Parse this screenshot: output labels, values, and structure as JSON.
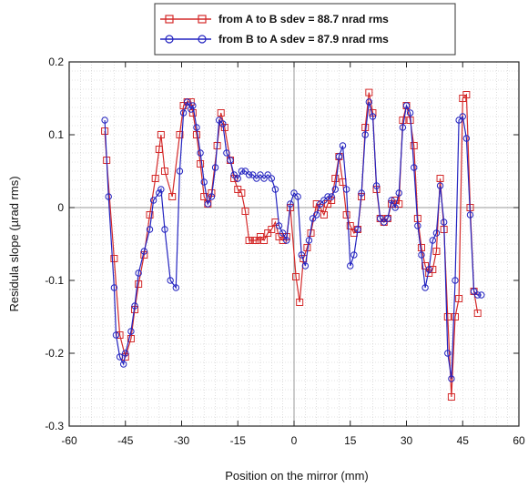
{
  "chart_data": {
    "type": "line",
    "title": "",
    "xlabel": "Position on the mirror (mm)",
    "ylabel": "Residula slope (µrad rms)",
    "xlim": [
      -60,
      60
    ],
    "ylim": [
      -0.3,
      0.2
    ],
    "xticks": [
      -60,
      -45,
      -30,
      -15,
      0,
      15,
      30,
      45,
      60
    ],
    "yticks": [
      -0.3,
      -0.2,
      -0.1,
      0,
      0.1,
      0.2
    ],
    "xtick_labels": [
      "-60",
      "-45",
      "-30",
      "-15",
      "0",
      "15",
      "30",
      "45",
      "60"
    ],
    "ytick_labels": [
      "-0.3",
      "-0.2",
      "-0.1",
      "0",
      "0.1",
      "0.2"
    ],
    "grid": true,
    "legend_position": "top-center",
    "series": [
      {
        "name": "from A to B sdev = 88.7 nrad rms",
        "color": "#d42a2a",
        "marker": "square",
        "x": [
          -50.5,
          -50,
          -48,
          -46.5,
          -45,
          -43.5,
          -42.5,
          -41.5,
          -40,
          -38.5,
          -37,
          -36,
          -35.5,
          -34.5,
          -32.5,
          -30.5,
          -29.5,
          -28.5,
          -27.5,
          -27,
          -26,
          -25,
          -24,
          -23,
          -22,
          -20.5,
          -19.5,
          -18.5,
          -17,
          -16,
          -15,
          -14,
          -13,
          -12,
          -11,
          -10.5,
          -10,
          -9,
          -8,
          -7,
          -6,
          -5,
          -4,
          -3,
          -2,
          -1,
          0.5,
          1.5,
          2.5,
          3.5,
          4.5,
          6,
          7,
          8,
          9,
          10,
          11,
          12,
          13,
          14,
          15,
          16,
          17,
          18,
          19,
          20,
          21,
          22,
          23,
          24,
          25,
          26,
          27,
          28,
          29,
          30,
          31,
          32,
          33,
          34,
          35,
          36,
          37,
          38,
          39,
          40,
          41,
          42,
          43,
          44,
          45,
          46,
          47,
          48,
          49
        ],
        "y": [
          0.105,
          0.065,
          -0.07,
          -0.175,
          -0.205,
          -0.18,
          -0.14,
          -0.105,
          -0.065,
          -0.01,
          0.04,
          0.08,
          0.1,
          0.05,
          0.015,
          0.1,
          0.14,
          0.145,
          0.145,
          0.13,
          0.1,
          0.06,
          0.015,
          0.005,
          0.02,
          0.085,
          0.13,
          0.11,
          0.065,
          0.04,
          0.025,
          0.02,
          -0.005,
          -0.045,
          -0.045,
          -0.045,
          -0.045,
          -0.04,
          -0.045,
          -0.035,
          -0.03,
          -0.02,
          -0.04,
          -0.045,
          -0.04,
          0,
          -0.095,
          -0.13,
          -0.07,
          -0.055,
          -0.035,
          0.005,
          0.0,
          -0.01,
          0.005,
          0.01,
          0.04,
          0.07,
          0.035,
          -0.01,
          -0.025,
          -0.035,
          -0.03,
          0.015,
          0.11,
          0.158,
          0.13,
          0.025,
          -0.015,
          -0.02,
          -0.015,
          0.005,
          0.01,
          0.005,
          0.12,
          0.14,
          0.12,
          0.085,
          -0.015,
          -0.055,
          -0.08,
          -0.09,
          -0.085,
          -0.06,
          0.04,
          -0.03,
          -0.15,
          -0.26,
          -0.15,
          -0.125,
          0.15,
          0.155,
          -0.0,
          -0.115,
          -0.145
        ]
      },
      {
        "name": "from B to A sdev = 87.9 nrad rms",
        "color": "#2424c0",
        "marker": "circle",
        "x": [
          -50.5,
          -49.5,
          -48,
          -47.5,
          -46.5,
          -45.5,
          -45,
          -43.5,
          -42.5,
          -41.5,
          -40,
          -38.5,
          -37.5,
          -36,
          -35.5,
          -34.5,
          -33,
          -31.5,
          -30.5,
          -29.5,
          -28.5,
          -27.5,
          -27,
          -26,
          -25,
          -24,
          -23,
          -22,
          -21,
          -20,
          -19,
          -18,
          -17,
          -16,
          -15,
          -14,
          -13,
          -12,
          -11,
          -10,
          -9,
          -8,
          -7,
          -6,
          -5,
          -4,
          -3,
          -2,
          -1,
          0,
          1,
          2,
          3,
          4,
          5,
          6,
          7,
          8,
          9,
          10,
          11,
          12,
          13,
          14,
          15,
          16,
          17,
          18,
          19,
          20,
          21,
          22,
          23,
          24,
          25,
          26,
          27,
          28,
          29,
          30,
          31,
          32,
          33,
          34,
          35,
          36,
          37,
          38,
          39,
          40,
          41,
          42,
          43,
          44,
          45,
          46,
          47,
          48,
          49,
          50
        ],
        "y": [
          0.12,
          0.015,
          -0.11,
          -0.175,
          -0.205,
          -0.215,
          -0.2,
          -0.17,
          -0.135,
          -0.09,
          -0.06,
          -0.03,
          0.01,
          0.02,
          0.025,
          -0.03,
          -0.1,
          -0.11,
          0.05,
          0.13,
          0.145,
          0.135,
          0.14,
          0.11,
          0.075,
          0.035,
          0.005,
          0.015,
          0.055,
          0.12,
          0.115,
          0.075,
          0.065,
          0.045,
          0.04,
          0.05,
          0.05,
          0.045,
          0.045,
          0.04,
          0.045,
          0.04,
          0.045,
          0.04,
          0.025,
          -0.025,
          -0.035,
          -0.045,
          0.005,
          0.02,
          0.015,
          -0.065,
          -0.08,
          -0.045,
          -0.015,
          -0.01,
          0.005,
          0.01,
          0.015,
          0.015,
          0.025,
          0.07,
          0.085,
          0.025,
          -0.08,
          -0.065,
          -0.03,
          0.02,
          0.1,
          0.145,
          0.125,
          0.03,
          -0.015,
          -0.02,
          -0.015,
          0.01,
          0.0,
          0.02,
          0.11,
          0.14,
          0.13,
          0.055,
          -0.025,
          -0.065,
          -0.11,
          -0.085,
          -0.045,
          -0.035,
          0.03,
          -0.02,
          -0.2,
          -0.235,
          -0.1,
          0.12,
          0.125,
          0.095,
          -0.01,
          -0.115,
          -0.12,
          -0.12
        ]
      }
    ]
  }
}
